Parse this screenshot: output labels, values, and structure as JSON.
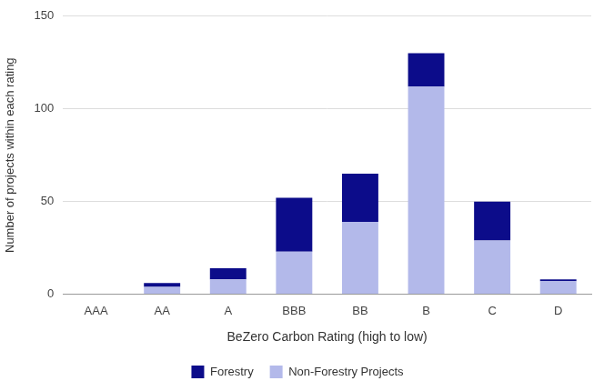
{
  "chart_data": {
    "type": "bar",
    "x_label": "BeZero Carbon Rating (high to low)",
    "y_label": "Number of projects within each rating",
    "categories": [
      "AAA",
      "AA",
      "A",
      "BBB",
      "BB",
      "B",
      "C",
      "D"
    ],
    "series": [
      {
        "name": "Non-Forestry Projects",
        "color": "#b3b9ea",
        "values": [
          0,
          4,
          8,
          23,
          39,
          112,
          29,
          7
        ]
      },
      {
        "name": "Forestry",
        "color": "#0c0c8a",
        "values": [
          0,
          2,
          6,
          29,
          26,
          18,
          21,
          1
        ]
      }
    ],
    "ylim": [
      0,
      150
    ],
    "yticks": [
      0,
      50,
      100,
      150
    ],
    "grid": true,
    "stacked": true,
    "legend": "bottom"
  }
}
